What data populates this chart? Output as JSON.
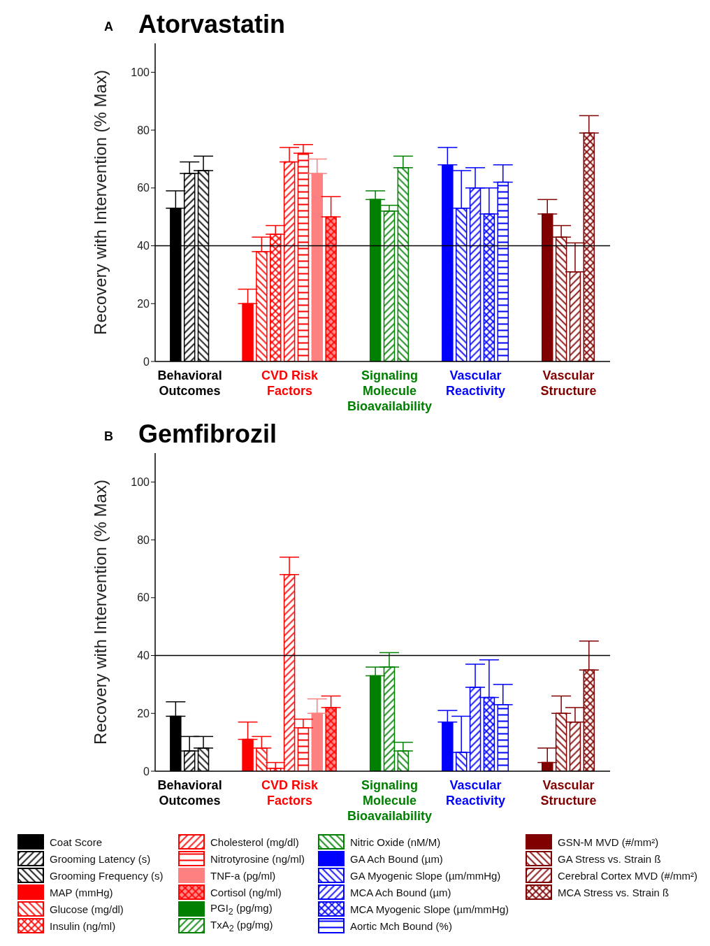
{
  "chart_data": [
    {
      "type": "bar",
      "title": "Atorvastatin",
      "annotations": [
        "A"
      ],
      "ylabel": "Recovery with Intervention (% Max)",
      "categories": [
        "Behavioral Outcomes",
        "CVD Risk Factors",
        "Signaling Molecule Bioavailability",
        "Vascular Reactivity",
        "Vascular Structure"
      ],
      "ylim": [
        0,
        110
      ],
      "yticks": [
        0,
        20,
        40,
        60,
        80,
        100
      ],
      "grid": false,
      "ref_lines": [
        {
          "axis": "y",
          "value": 40,
          "color": "#000000"
        }
      ],
      "series": [
        {
          "color": "#000000",
          "values": [
            53,
            null,
            null,
            null,
            null
          ],
          "errors": [
            [
              53,
              59
            ],
            null,
            null,
            null,
            null
          ]
        },
        {
          "color": "#000000",
          "values": [
            65,
            null,
            null,
            null,
            null
          ],
          "errors": [
            [
              65,
              69
            ],
            null,
            null,
            null,
            null
          ]
        },
        {
          "color": "#000000",
          "values": [
            66,
            null,
            null,
            null,
            null
          ],
          "errors": [
            [
              66,
              71
            ],
            null,
            null,
            null,
            null
          ]
        },
        {
          "color": "#ff0000",
          "values": [
            null,
            20,
            null,
            null,
            null
          ],
          "errors": [
            null,
            [
              20,
              25
            ],
            null,
            null,
            null
          ]
        },
        {
          "color": "#ff0000",
          "values": [
            null,
            38,
            null,
            null,
            null
          ],
          "errors": [
            null,
            [
              38,
              43
            ],
            null,
            null,
            null
          ]
        },
        {
          "color": "#ff0000",
          "values": [
            null,
            44,
            null,
            null,
            null
          ],
          "errors": [
            null,
            [
              44,
              47
            ],
            null,
            null,
            null
          ]
        },
        {
          "color": "#ff0000",
          "values": [
            null,
            69,
            null,
            null,
            null
          ],
          "errors": [
            null,
            [
              69,
              74
            ],
            null,
            null,
            null
          ]
        },
        {
          "color": "#ff0000",
          "values": [
            null,
            72,
            null,
            null,
            null
          ],
          "errors": [
            null,
            [
              72,
              75
            ],
            null,
            null,
            null
          ]
        },
        {
          "color": "#ff8080",
          "values": [
            null,
            65,
            null,
            null,
            null
          ],
          "errors": [
            null,
            [
              65,
              70
            ],
            null,
            null,
            null
          ]
        },
        {
          "color": "#ff0000",
          "values": [
            null,
            50,
            null,
            null,
            null
          ],
          "errors": [
            null,
            [
              50,
              57
            ],
            null,
            null,
            null
          ]
        },
        {
          "color": "#008000",
          "values": [
            null,
            null,
            56,
            null,
            null
          ],
          "errors": [
            null,
            null,
            [
              56,
              59
            ],
            null,
            null
          ]
        },
        {
          "color": "#008000",
          "values": [
            null,
            null,
            52,
            null,
            null
          ],
          "errors": [
            null,
            null,
            [
              52,
              54
            ],
            null,
            null
          ]
        },
        {
          "color": "#008000",
          "values": [
            null,
            null,
            67,
            null,
            null
          ],
          "errors": [
            null,
            null,
            [
              67,
              71
            ],
            null,
            null
          ]
        },
        {
          "color": "#0000ff",
          "values": [
            null,
            null,
            null,
            68,
            null
          ],
          "errors": [
            null,
            null,
            null,
            [
              68,
              74
            ],
            null
          ]
        },
        {
          "color": "#0000ff",
          "values": [
            null,
            null,
            null,
            53,
            null
          ],
          "errors": [
            null,
            null,
            null,
            [
              53,
              66
            ],
            null
          ]
        },
        {
          "color": "#0000ff",
          "values": [
            null,
            null,
            null,
            60,
            null
          ],
          "errors": [
            null,
            null,
            null,
            [
              60,
              67
            ],
            null
          ]
        },
        {
          "color": "#0000ff",
          "values": [
            null,
            null,
            null,
            51,
            null
          ],
          "errors": [
            null,
            null,
            null,
            [
              51,
              60
            ],
            null
          ]
        },
        {
          "color": "#0000ff",
          "values": [
            null,
            null,
            null,
            62,
            null
          ],
          "errors": [
            null,
            null,
            null,
            [
              62,
              68
            ],
            null
          ]
        },
        {
          "color": "#800000",
          "values": [
            null,
            null,
            null,
            null,
            51
          ],
          "errors": [
            null,
            null,
            null,
            null,
            [
              51,
              56
            ]
          ]
        },
        {
          "color": "#800000",
          "values": [
            null,
            null,
            null,
            null,
            43
          ],
          "errors": [
            null,
            null,
            null,
            null,
            [
              43,
              47
            ]
          ]
        },
        {
          "color": "#800000",
          "values": [
            null,
            null,
            null,
            null,
            31
          ],
          "errors": [
            null,
            null,
            null,
            null,
            [
              31,
              41
            ]
          ]
        },
        {
          "color": "#800000",
          "values": [
            null,
            null,
            null,
            null,
            79
          ],
          "errors": [
            null,
            null,
            null,
            null,
            [
              79,
              85
            ]
          ]
        }
      ]
    },
    {
      "type": "bar",
      "title": "Gemfibrozil",
      "annotations": [
        "B"
      ],
      "ylabel": "Recovery with Intervention (% Max)",
      "categories": [
        "Behavioral Outcomes",
        "CVD Risk Factors",
        "Signaling Molecule Bioavailability",
        "Vascular Reactivity",
        "Vascular Structure"
      ],
      "ylim": [
        0,
        110
      ],
      "yticks": [
        0,
        20,
        40,
        60,
        80,
        100
      ],
      "grid": false,
      "legend": "bottom",
      "ref_lines": [
        {
          "axis": "y",
          "value": 40,
          "color": "#000000"
        }
      ],
      "series": [
        {
          "name": "Coat Score",
          "color": "#000000",
          "values": [
            19,
            null,
            null,
            null,
            null
          ],
          "errors": [
            [
              19,
              24
            ],
            null,
            null,
            null,
            null
          ]
        },
        {
          "name": "Grooming Latency (s)",
          "color": "#000000",
          "values": [
            7,
            null,
            null,
            null,
            null
          ],
          "errors": [
            [
              7,
              12
            ],
            null,
            null,
            null,
            null
          ]
        },
        {
          "name": "Grooming Frequency (s)",
          "color": "#000000",
          "values": [
            8,
            null,
            null,
            null,
            null
          ],
          "errors": [
            [
              8,
              12
            ],
            null,
            null,
            null,
            null
          ]
        },
        {
          "name": "MAP (mmHg)",
          "color": "#ff0000",
          "values": [
            null,
            11,
            null,
            null,
            null
          ],
          "errors": [
            null,
            [
              11,
              17
            ],
            null,
            null,
            null
          ]
        },
        {
          "name": "Glucose (mg/dl)",
          "color": "#ff0000",
          "values": [
            null,
            8,
            null,
            null,
            null
          ],
          "errors": [
            null,
            [
              8,
              12
            ],
            null,
            null,
            null
          ]
        },
        {
          "name": "Insulin (ng/ml)",
          "color": "#ff0000",
          "values": [
            null,
            1,
            null,
            null,
            null
          ],
          "errors": [
            null,
            [
              1,
              3
            ],
            null,
            null,
            null
          ]
        },
        {
          "name": "Cholesterol (mg/dl)",
          "color": "#ff0000",
          "values": [
            null,
            68,
            null,
            null,
            null
          ],
          "errors": [
            null,
            [
              68,
              74
            ],
            null,
            null,
            null
          ]
        },
        {
          "name": "Nitrotyrosine (ng/ml)",
          "color": "#ff0000",
          "values": [
            null,
            15,
            null,
            null,
            null
          ],
          "errors": [
            null,
            [
              15,
              18
            ],
            null,
            null,
            null
          ]
        },
        {
          "name": "TNF-a (pg/ml)",
          "color": "#ff8080",
          "values": [
            null,
            20,
            null,
            null,
            null
          ],
          "errors": [
            null,
            [
              20,
              25
            ],
            null,
            null,
            null
          ]
        },
        {
          "name": "Cortisol (ng/ml)",
          "color": "#ff0000",
          "values": [
            null,
            22,
            null,
            null,
            null
          ],
          "errors": [
            null,
            [
              22,
              26
            ],
            null,
            null,
            null
          ]
        },
        {
          "name": "PGI$_{2}$ (pg/mg)",
          "color": "#008000",
          "values": [
            null,
            null,
            33,
            null,
            null
          ],
          "errors": [
            null,
            null,
            [
              33,
              36
            ],
            null,
            null
          ]
        },
        {
          "name": "TxA$_{2}$ (pg/mg)",
          "color": "#008000",
          "values": [
            null,
            null,
            36,
            null,
            null
          ],
          "errors": [
            null,
            null,
            [
              36,
              41
            ],
            null,
            null
          ]
        },
        {
          "name": "Nitric Oxide (nM/M)",
          "color": "#008000",
          "values": [
            null,
            null,
            7,
            null,
            null
          ],
          "errors": [
            null,
            null,
            [
              7,
              10
            ],
            null,
            null
          ]
        },
        {
          "name": "GA Ach Bound (µm)",
          "color": "#0000ff",
          "values": [
            null,
            null,
            null,
            17,
            null
          ],
          "errors": [
            null,
            null,
            null,
            [
              17,
              21
            ],
            null
          ]
        },
        {
          "name": "GA Myogenic Slope (µm/mmHg)",
          "color": "#0000ff",
          "values": [
            null,
            null,
            null,
            6.5,
            null
          ],
          "errors": [
            null,
            null,
            null,
            [
              6.5,
              19
            ],
            null
          ]
        },
        {
          "name": "MCA Ach Bound (µm)",
          "color": "#0000ff",
          "values": [
            null,
            null,
            null,
            29,
            null
          ],
          "errors": [
            null,
            null,
            null,
            [
              29,
              37
            ],
            null
          ]
        },
        {
          "name": "MCA Myogenic Slope (µm/mmHg)",
          "color": "#0000ff",
          "values": [
            null,
            null,
            null,
            25.5,
            null
          ],
          "errors": [
            null,
            null,
            null,
            [
              25.5,
              38.5
            ],
            null
          ]
        },
        {
          "name": "Aortic Mch Bound (%)",
          "color": "#0000ff",
          "values": [
            null,
            null,
            null,
            23,
            null
          ],
          "errors": [
            null,
            null,
            null,
            [
              23,
              30
            ],
            null
          ]
        },
        {
          "name": "GSN-M MVD (#/mm²)",
          "color": "#800000",
          "values": [
            null,
            null,
            null,
            null,
            3
          ],
          "errors": [
            null,
            null,
            null,
            null,
            [
              3,
              8
            ]
          ]
        },
        {
          "name": "GA Stress vs. Strain ß",
          "color": "#800000",
          "values": [
            null,
            null,
            null,
            null,
            20
          ],
          "errors": [
            null,
            null,
            null,
            null,
            [
              20,
              26
            ]
          ]
        },
        {
          "name": "Cerebral Cortex MVD (#/mm²)",
          "color": "#800000",
          "values": [
            null,
            null,
            null,
            null,
            17
          ],
          "errors": [
            null,
            null,
            null,
            null,
            [
              17,
              22
            ]
          ]
        },
        {
          "name": "MCA Stress vs. Strain ß",
          "color": "#800000",
          "values": [
            null,
            null,
            null,
            null,
            35
          ],
          "errors": [
            null,
            null,
            null,
            null,
            [
              35,
              45
            ]
          ]
        }
      ]
    }
  ]
}
